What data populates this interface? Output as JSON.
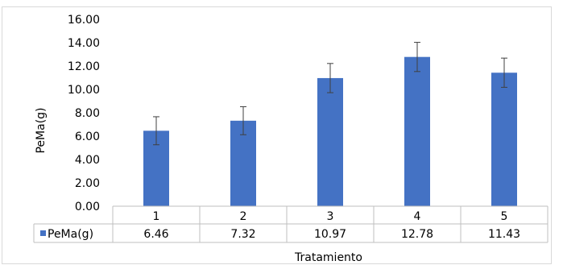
{
  "chart_data": {
    "type": "bar",
    "categories": [
      "1",
      "2",
      "3",
      "4",
      "5"
    ],
    "series": [
      {
        "name": "PeMa(g)",
        "values": [
          6.46,
          7.32,
          10.97,
          12.78,
          11.43
        ],
        "errors": [
          1.2,
          1.2,
          1.25,
          1.25,
          1.25
        ],
        "color": "#4472c4"
      }
    ],
    "data_table": {
      "legend_label": "PeMa(g)",
      "value_labels": [
        "6.46",
        "7.32",
        "10.97",
        "12.78",
        "11.43"
      ]
    },
    "ylabel": "PeMa(g)",
    "xlabel": "Tratamiento",
    "ylim": [
      0,
      16
    ],
    "yticks": [
      "0.00",
      "2.00",
      "4.00",
      "6.00",
      "8.00",
      "10.00",
      "12.00",
      "14.00",
      "16.00"
    ],
    "grid": false,
    "legend": "data-table"
  }
}
